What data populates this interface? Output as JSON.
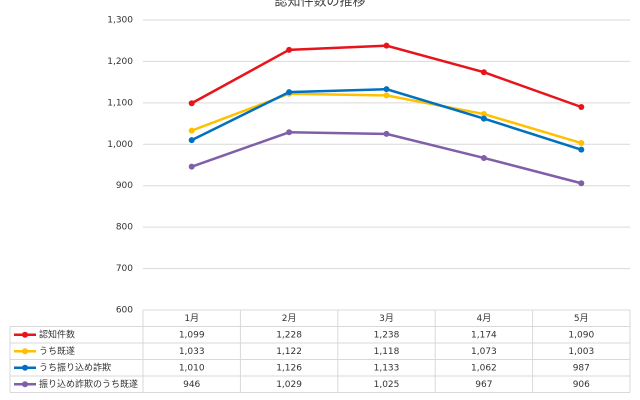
{
  "chart_data": {
    "type": "line",
    "title": "認知件数の推移",
    "categories": [
      "1月",
      "2月",
      "3月",
      "4月",
      "5月"
    ],
    "series": [
      {
        "name": "認知件数",
        "color": "#e8131b",
        "values": [
          1099,
          1228,
          1238,
          1174,
          1090
        ],
        "value_labels": [
          "1,099",
          "1,228",
          "1,238",
          "1,174",
          "1,090"
        ]
      },
      {
        "name": "うち既遂",
        "color": "#ffc000",
        "values": [
          1033,
          1122,
          1118,
          1073,
          1003
        ],
        "value_labels": [
          "1,033",
          "1,122",
          "1,118",
          "1,073",
          "1,003"
        ]
      },
      {
        "name": "うち振り込め詐欺",
        "color": "#0070c0",
        "values": [
          1010,
          1126,
          1133,
          1062,
          987
        ],
        "value_labels": [
          "1,010",
          "1,126",
          "1,133",
          "1,062",
          "987"
        ]
      },
      {
        "name": "振り込め詐欺のうち既遂",
        "color": "#7f5fa8",
        "values": [
          946,
          1029,
          1025,
          967,
          906
        ],
        "value_labels": [
          "946",
          "1,029",
          "1,025",
          "967",
          "906"
        ]
      }
    ],
    "ylim": [
      600,
      1300
    ],
    "yticks": [
      600,
      700,
      800,
      900,
      {
        "value": 1000,
        "label": "1,000"
      },
      {
        "value": 1100,
        "label": "1,100"
      },
      {
        "value": 1200,
        "label": "1,200"
      },
      {
        "value": 1300,
        "label": "1,300"
      }
    ],
    "grid": true
  }
}
